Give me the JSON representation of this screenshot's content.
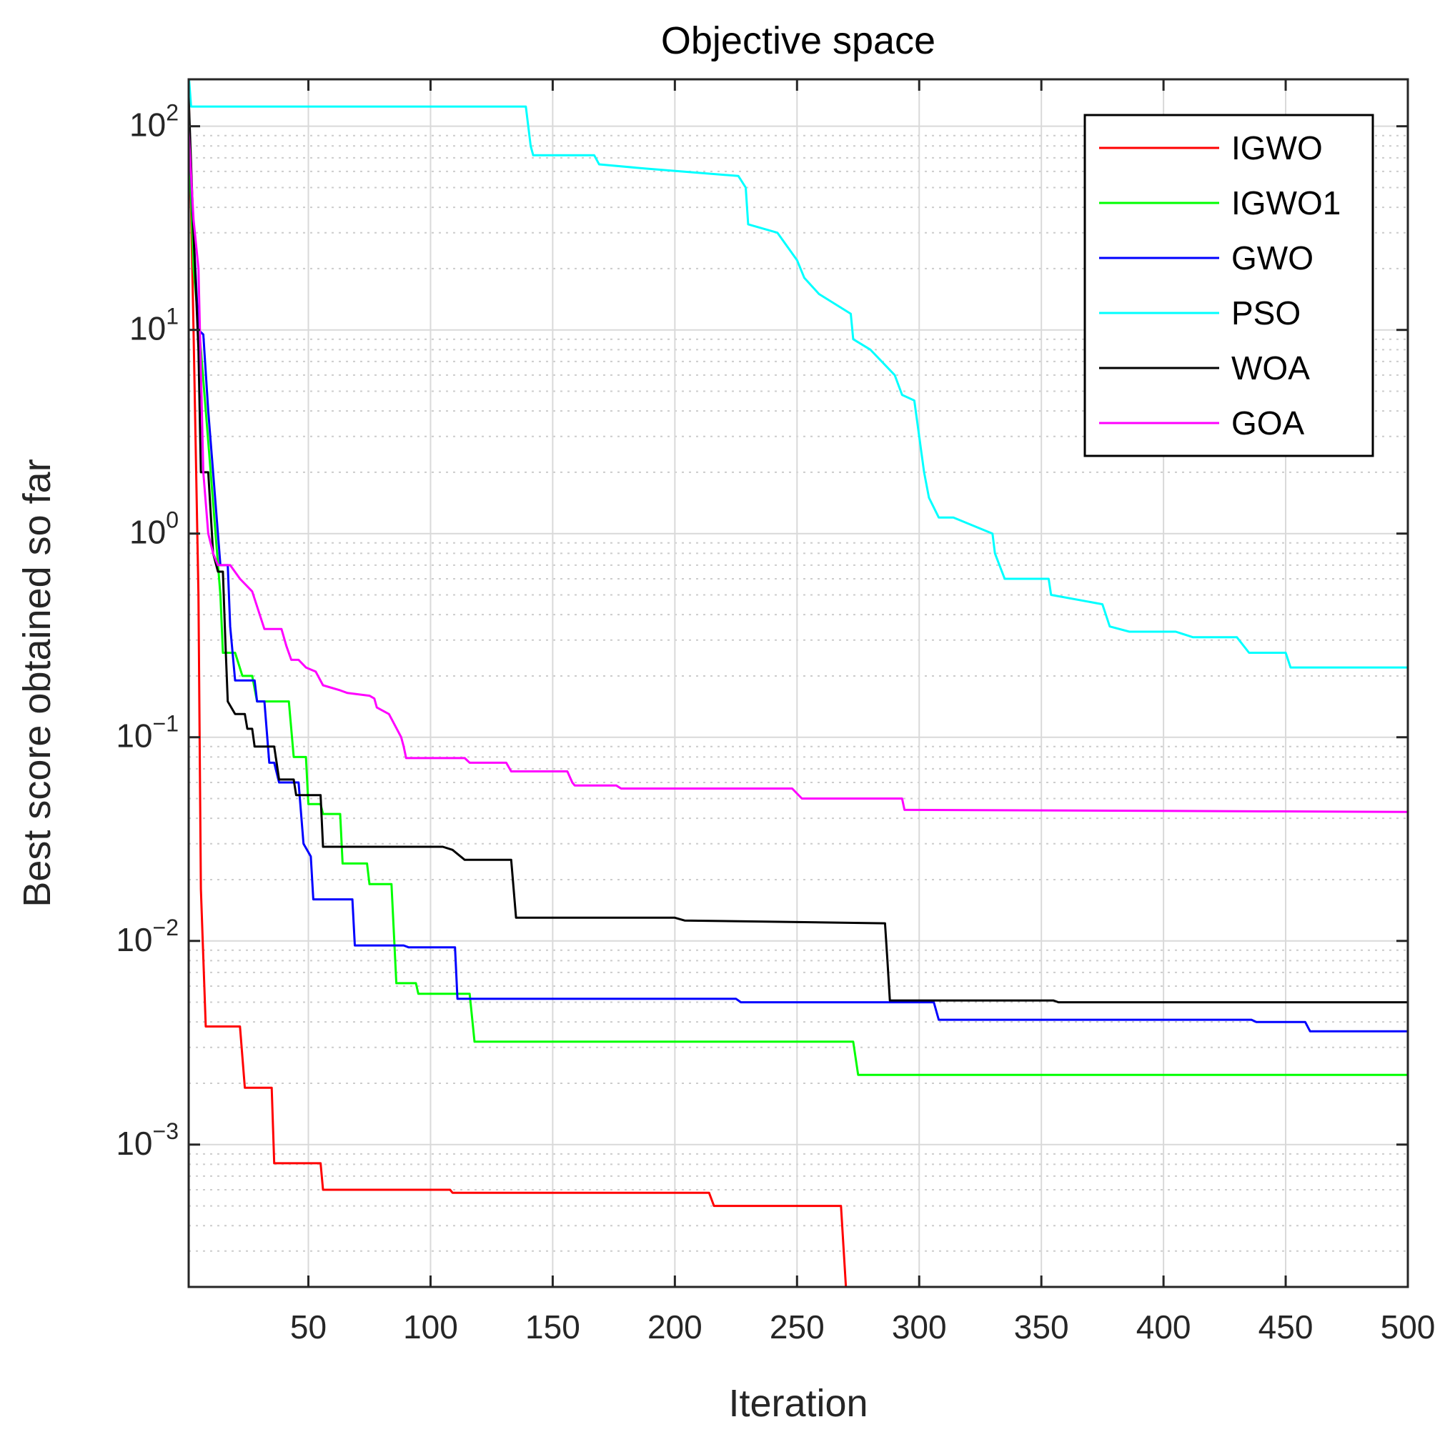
{
  "chart_data": {
    "type": "line",
    "title": "Objective space",
    "xlabel": "Iteration",
    "ylabel": "Best score obtained so far",
    "xscale": "linear",
    "yscale": "log",
    "xlim": [
      1,
      500
    ],
    "ylim": [
      0.0002,
      170
    ],
    "xticks": [
      50,
      100,
      150,
      200,
      250,
      300,
      350,
      400,
      450,
      500
    ],
    "yticks": [
      {
        "value": 0.001,
        "base": "10",
        "exp": "−3"
      },
      {
        "value": 0.01,
        "base": "10",
        "exp": "−2"
      },
      {
        "value": 0.1,
        "base": "10",
        "exp": "−1"
      },
      {
        "value": 1,
        "base": "10",
        "exp": "0"
      },
      {
        "value": 10,
        "base": "10",
        "exp": "1"
      },
      {
        "value": 100,
        "base": "10",
        "exp": "2"
      }
    ],
    "grid": true,
    "minor_grid": true,
    "legend_position": "top-right",
    "series": [
      {
        "name": "IGWO",
        "color": "#ff0000",
        "points": [
          [
            1,
            150
          ],
          [
            3,
            10
          ],
          [
            5,
            0.5
          ],
          [
            6,
            0.018
          ],
          [
            8,
            0.0038
          ],
          [
            22,
            0.0038
          ],
          [
            24,
            0.0019
          ],
          [
            35,
            0.0019
          ],
          [
            36,
            0.00081
          ],
          [
            55,
            0.00081
          ],
          [
            56,
            0.0006
          ],
          [
            108,
            0.0006
          ],
          [
            109,
            0.00058
          ],
          [
            214,
            0.00058
          ],
          [
            216,
            0.0005
          ],
          [
            268,
            0.0005
          ],
          [
            270,
            0.0002
          ],
          [
            500,
            0.0002
          ]
        ]
      },
      {
        "name": "IGWO1",
        "color": "#00ff00",
        "points": [
          [
            1,
            100
          ],
          [
            3,
            20
          ],
          [
            6,
            8
          ],
          [
            10,
            2
          ],
          [
            12,
            1
          ],
          [
            14,
            0.5
          ],
          [
            15,
            0.26
          ],
          [
            20,
            0.26
          ],
          [
            23,
            0.2
          ],
          [
            27,
            0.2
          ],
          [
            29,
            0.15
          ],
          [
            42,
            0.15
          ],
          [
            44,
            0.08
          ],
          [
            49,
            0.08
          ],
          [
            50,
            0.047
          ],
          [
            55,
            0.047
          ],
          [
            56,
            0.042
          ],
          [
            63,
            0.042
          ],
          [
            64,
            0.024
          ],
          [
            74,
            0.024
          ],
          [
            75,
            0.019
          ],
          [
            84,
            0.019
          ],
          [
            86,
            0.0062
          ],
          [
            94,
            0.0062
          ],
          [
            95,
            0.0055
          ],
          [
            116,
            0.0055
          ],
          [
            118,
            0.0032
          ],
          [
            273,
            0.0032
          ],
          [
            275,
            0.0022
          ],
          [
            500,
            0.0022
          ]
        ]
      },
      {
        "name": "GWO",
        "color": "#0000ff",
        "points": [
          [
            1,
            110
          ],
          [
            3,
            30
          ],
          [
            5,
            10
          ],
          [
            7,
            9.5
          ],
          [
            9,
            4
          ],
          [
            11,
            2
          ],
          [
            14,
            0.7
          ],
          [
            17,
            0.7
          ],
          [
            18,
            0.35
          ],
          [
            20,
            0.19
          ],
          [
            28,
            0.19
          ],
          [
            29,
            0.15
          ],
          [
            32,
            0.15
          ],
          [
            34,
            0.075
          ],
          [
            36,
            0.075
          ],
          [
            38,
            0.06
          ],
          [
            46,
            0.06
          ],
          [
            48,
            0.03
          ],
          [
            51,
            0.026
          ],
          [
            52,
            0.016
          ],
          [
            68,
            0.016
          ],
          [
            69,
            0.0095
          ],
          [
            89,
            0.0095
          ],
          [
            91,
            0.0093
          ],
          [
            110,
            0.0093
          ],
          [
            111,
            0.0052
          ],
          [
            225,
            0.0052
          ],
          [
            227,
            0.005
          ],
          [
            306,
            0.005
          ],
          [
            308,
            0.0041
          ],
          [
            436,
            0.0041
          ],
          [
            438,
            0.004
          ],
          [
            458,
            0.004
          ],
          [
            460,
            0.0036
          ],
          [
            500,
            0.0036
          ]
        ]
      },
      {
        "name": "PSO",
        "color": "#00ffff",
        "points": [
          [
            1,
            180
          ],
          [
            2,
            125
          ],
          [
            139,
            125
          ],
          [
            141,
            80
          ],
          [
            142,
            72
          ],
          [
            167,
            72
          ],
          [
            169,
            65
          ],
          [
            188,
            62
          ],
          [
            226,
            57
          ],
          [
            229,
            50
          ],
          [
            230,
            33
          ],
          [
            242,
            30
          ],
          [
            250,
            22
          ],
          [
            253,
            18
          ],
          [
            259,
            15
          ],
          [
            272,
            12
          ],
          [
            273,
            9
          ],
          [
            280,
            8
          ],
          [
            290,
            6
          ],
          [
            293,
            4.8
          ],
          [
            298,
            4.5
          ],
          [
            302,
            2
          ],
          [
            304,
            1.5
          ],
          [
            308,
            1.2
          ],
          [
            314,
            1.2
          ],
          [
            330,
            1.0
          ],
          [
            331,
            0.8
          ],
          [
            335,
            0.6
          ],
          [
            353,
            0.6
          ],
          [
            354,
            0.5
          ],
          [
            375,
            0.45
          ],
          [
            378,
            0.35
          ],
          [
            386,
            0.33
          ],
          [
            405,
            0.33
          ],
          [
            412,
            0.31
          ],
          [
            430,
            0.31
          ],
          [
            435,
            0.26
          ],
          [
            450,
            0.26
          ],
          [
            452,
            0.22
          ],
          [
            500,
            0.22
          ]
        ]
      },
      {
        "name": "WOA",
        "color": "#000000",
        "points": [
          [
            1,
            140
          ],
          [
            3,
            30
          ],
          [
            5,
            8
          ],
          [
            6,
            2
          ],
          [
            9,
            2
          ],
          [
            11,
            0.8
          ],
          [
            13,
            0.65
          ],
          [
            15,
            0.65
          ],
          [
            16,
            0.3
          ],
          [
            17,
            0.15
          ],
          [
            20,
            0.13
          ],
          [
            24,
            0.13
          ],
          [
            25,
            0.11
          ],
          [
            27,
            0.11
          ],
          [
            28,
            0.09
          ],
          [
            36,
            0.09
          ],
          [
            37,
            0.075
          ],
          [
            38,
            0.062
          ],
          [
            44,
            0.062
          ],
          [
            45,
            0.052
          ],
          [
            55,
            0.052
          ],
          [
            56,
            0.029
          ],
          [
            105,
            0.029
          ],
          [
            109,
            0.028
          ],
          [
            114,
            0.025
          ],
          [
            133,
            0.025
          ],
          [
            135,
            0.013
          ],
          [
            200,
            0.013
          ],
          [
            204,
            0.0126
          ],
          [
            286,
            0.0122
          ],
          [
            287,
            0.008
          ],
          [
            288,
            0.0051
          ],
          [
            355,
            0.0051
          ],
          [
            357,
            0.005
          ],
          [
            500,
            0.005
          ]
        ]
      },
      {
        "name": "GOA",
        "color": "#ff00ff",
        "points": [
          [
            1,
            95
          ],
          [
            3,
            35
          ],
          [
            5,
            20
          ],
          [
            7,
            2
          ],
          [
            9,
            1
          ],
          [
            11,
            0.8
          ],
          [
            13,
            0.7
          ],
          [
            18,
            0.7
          ],
          [
            22,
            0.6
          ],
          [
            27,
            0.52
          ],
          [
            32,
            0.34
          ],
          [
            39,
            0.34
          ],
          [
            41,
            0.28
          ],
          [
            43,
            0.24
          ],
          [
            46,
            0.24
          ],
          [
            49,
            0.22
          ],
          [
            53,
            0.21
          ],
          [
            56,
            0.18
          ],
          [
            63,
            0.17
          ],
          [
            66,
            0.165
          ],
          [
            75,
            0.16
          ],
          [
            77,
            0.155
          ],
          [
            78,
            0.14
          ],
          [
            83,
            0.13
          ],
          [
            88,
            0.1
          ],
          [
            89,
            0.09
          ],
          [
            90,
            0.079
          ],
          [
            114,
            0.079
          ],
          [
            116,
            0.075
          ],
          [
            131,
            0.075
          ],
          [
            133,
            0.068
          ],
          [
            156,
            0.068
          ],
          [
            158,
            0.06
          ],
          [
            159,
            0.058
          ],
          [
            176,
            0.058
          ],
          [
            178,
            0.056
          ],
          [
            248,
            0.056
          ],
          [
            252,
            0.05
          ],
          [
            293,
            0.05
          ],
          [
            294,
            0.044
          ],
          [
            500,
            0.043
          ]
        ]
      }
    ]
  }
}
